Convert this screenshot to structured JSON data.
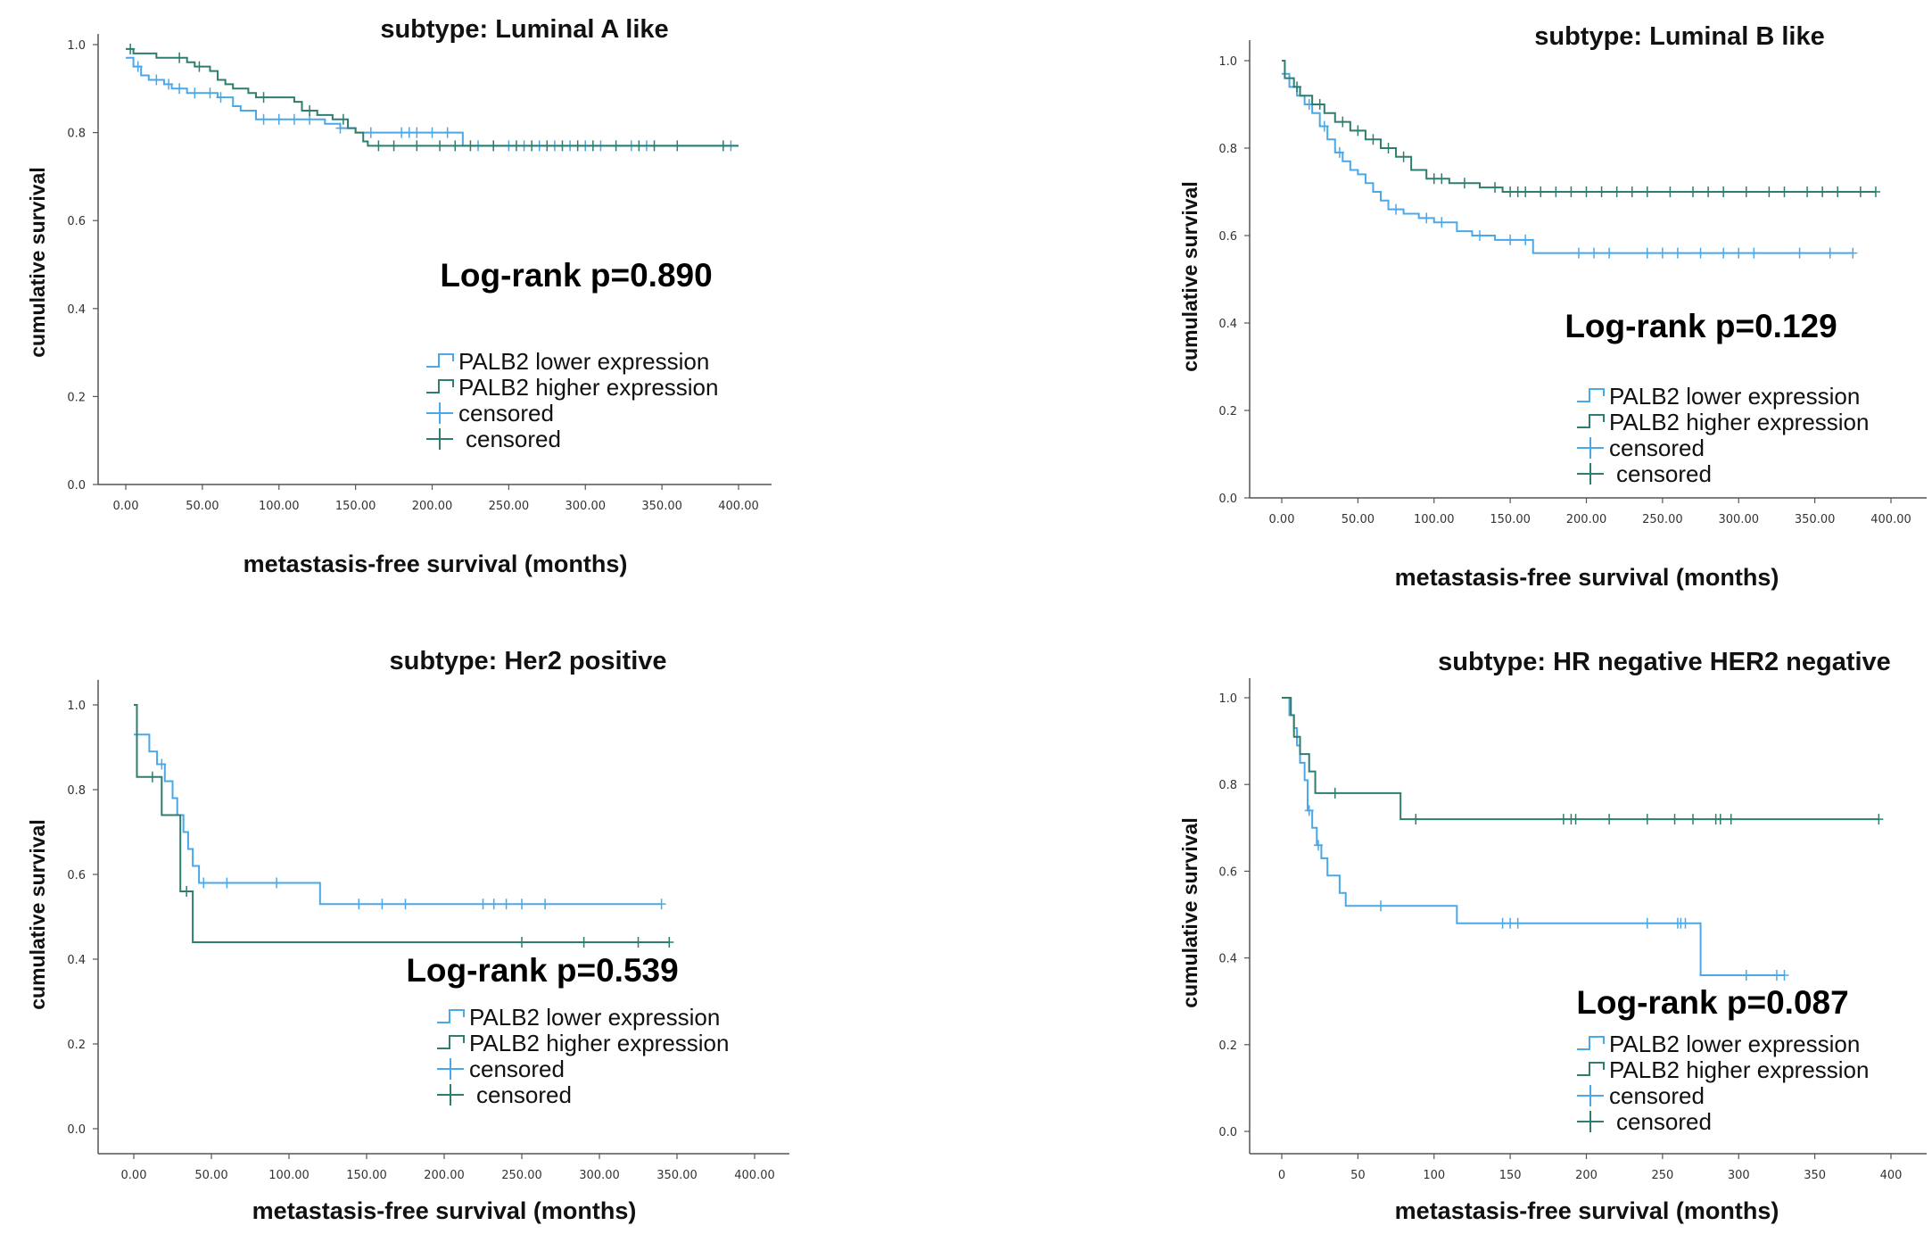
{
  "colors": {
    "lower": "#4aa8e8",
    "higher": "#2e7d6f",
    "axis": "#555555"
  },
  "chart_data": [
    {
      "type": "line",
      "title": "subtype: Luminal A like",
      "xlabel": "metastasis-free survival (months)",
      "ylabel": "cumulative survival",
      "xlim": [
        0,
        400
      ],
      "ylim": [
        0,
        1
      ],
      "x_ticks": [
        0,
        50,
        100,
        150,
        200,
        250,
        300,
        350,
        400
      ],
      "x_tick_labels": [
        "0.00",
        "50.00",
        "100.00",
        "150.00",
        "200.00",
        "250.00",
        "300.00",
        "350.00",
        "400.00"
      ],
      "y_ticks": [
        0,
        0.2,
        0.4,
        0.6,
        0.8,
        1.0
      ],
      "y_tick_labels": [
        "0.0",
        "0.2",
        "0.4",
        "0.6",
        "0.8",
        "1.0"
      ],
      "annotation": "Log-rank p=0.890",
      "legend": [
        "PALB2 lower expression",
        "PALB2 higher expression",
        "censored",
        "censored"
      ],
      "series": [
        {
          "name": "PALB2 lower expression",
          "color_key": "lower",
          "steps": [
            [
              0,
              0.97
            ],
            [
              5,
              0.95
            ],
            [
              10,
              0.93
            ],
            [
              15,
              0.92
            ],
            [
              25,
              0.91
            ],
            [
              30,
              0.9
            ],
            [
              40,
              0.89
            ],
            [
              60,
              0.88
            ],
            [
              70,
              0.86
            ],
            [
              75,
              0.85
            ],
            [
              85,
              0.83
            ],
            [
              130,
              0.82
            ],
            [
              140,
              0.81
            ],
            [
              150,
              0.8
            ],
            [
              220,
              0.77
            ],
            [
              400,
              0.77
            ]
          ],
          "censored": [
            8,
            20,
            28,
            35,
            45,
            55,
            62,
            90,
            100,
            110,
            120,
            140,
            160,
            180,
            185,
            190,
            200,
            210,
            230,
            240,
            250,
            260,
            270,
            280,
            290,
            300,
            310,
            330,
            340,
            395
          ]
        },
        {
          "name": "PALB2 higher expression",
          "color_key": "higher",
          "steps": [
            [
              0,
              0.99
            ],
            [
              5,
              0.98
            ],
            [
              20,
              0.97
            ],
            [
              40,
              0.96
            ],
            [
              45,
              0.95
            ],
            [
              55,
              0.94
            ],
            [
              60,
              0.92
            ],
            [
              65,
              0.91
            ],
            [
              70,
              0.9
            ],
            [
              80,
              0.89
            ],
            [
              85,
              0.88
            ],
            [
              110,
              0.87
            ],
            [
              115,
              0.85
            ],
            [
              125,
              0.84
            ],
            [
              135,
              0.83
            ],
            [
              145,
              0.81
            ],
            [
              150,
              0.8
            ],
            [
              155,
              0.78
            ],
            [
              158,
              0.77
            ],
            [
              400,
              0.77
            ]
          ],
          "censored": [
            3,
            35,
            48,
            90,
            120,
            142,
            165,
            175,
            190,
            205,
            215,
            225,
            240,
            255,
            265,
            275,
            285,
            295,
            305,
            320,
            335,
            345,
            360,
            390
          ]
        }
      ]
    },
    {
      "type": "line",
      "title": "subtype: Luminal B like",
      "xlabel": "metastasis-free survival (months)",
      "ylabel": "cumulative survival",
      "xlim": [
        0,
        400
      ],
      "ylim": [
        0,
        1
      ],
      "x_ticks": [
        0,
        50,
        100,
        150,
        200,
        250,
        300,
        350,
        400
      ],
      "x_tick_labels": [
        "0.00",
        "50.00",
        "100.00",
        "150.00",
        "200.00",
        "250.00",
        "300.00",
        "350.00",
        "400.00"
      ],
      "y_ticks": [
        0,
        0.2,
        0.4,
        0.6,
        0.8,
        1.0
      ],
      "y_tick_labels": [
        "0.0",
        "0.2",
        "0.4",
        "0.6",
        "0.8",
        "1.0"
      ],
      "annotation": "Log-rank p=0.129",
      "legend": [
        "PALB2 lower expression",
        "PALB2 higher expression",
        "censored",
        "censored"
      ],
      "series": [
        {
          "name": "PALB2 lower expression",
          "color_key": "lower",
          "steps": [
            [
              0,
              0.97
            ],
            [
              5,
              0.94
            ],
            [
              10,
              0.92
            ],
            [
              15,
              0.9
            ],
            [
              20,
              0.88
            ],
            [
              25,
              0.85
            ],
            [
              30,
              0.82
            ],
            [
              35,
              0.79
            ],
            [
              40,
              0.77
            ],
            [
              45,
              0.75
            ],
            [
              50,
              0.74
            ],
            [
              55,
              0.72
            ],
            [
              60,
              0.7
            ],
            [
              65,
              0.68
            ],
            [
              70,
              0.66
            ],
            [
              80,
              0.65
            ],
            [
              90,
              0.64
            ],
            [
              100,
              0.63
            ],
            [
              115,
              0.61
            ],
            [
              125,
              0.6
            ],
            [
              140,
              0.59
            ],
            [
              165,
              0.56
            ],
            [
              375,
              0.56
            ]
          ],
          "censored": [
            18,
            28,
            38,
            75,
            95,
            105,
            130,
            150,
            160,
            195,
            205,
            215,
            240,
            250,
            260,
            275,
            290,
            300,
            310,
            340,
            360,
            375
          ]
        },
        {
          "name": "PALB2 higher expression",
          "color_key": "higher",
          "steps": [
            [
              0,
              1.0
            ],
            [
              2,
              0.96
            ],
            [
              8,
              0.94
            ],
            [
              12,
              0.92
            ],
            [
              20,
              0.9
            ],
            [
              28,
              0.88
            ],
            [
              35,
              0.86
            ],
            [
              45,
              0.84
            ],
            [
              55,
              0.82
            ],
            [
              65,
              0.8
            ],
            [
              75,
              0.78
            ],
            [
              85,
              0.75
            ],
            [
              95,
              0.73
            ],
            [
              110,
              0.72
            ],
            [
              130,
              0.71
            ],
            [
              145,
              0.7
            ],
            [
              390,
              0.7
            ]
          ],
          "censored": [
            10,
            25,
            40,
            50,
            60,
            70,
            80,
            100,
            105,
            120,
            140,
            150,
            155,
            160,
            170,
            180,
            190,
            200,
            210,
            220,
            230,
            240,
            255,
            270,
            280,
            290,
            305,
            320,
            330,
            345,
            355,
            365,
            380,
            390
          ]
        }
      ]
    },
    {
      "type": "line",
      "title": "subtype: Her2 positive",
      "xlabel": "metastasis-free survival (months)",
      "ylabel": "cumulative survival",
      "xlim": [
        0,
        400
      ],
      "ylim": [
        0,
        1
      ],
      "x_ticks": [
        0,
        50,
        100,
        150,
        200,
        250,
        300,
        350,
        400
      ],
      "x_tick_labels": [
        "0.00",
        "50.00",
        "100.00",
        "150.00",
        "200.00",
        "250.00",
        "300.00",
        "350.00",
        "400.00"
      ],
      "y_ticks": [
        0,
        0.2,
        0.4,
        0.6,
        0.8,
        1.0
      ],
      "y_tick_labels": [
        "0.0",
        "0.2",
        "0.4",
        "0.6",
        "0.8",
        "1.0"
      ],
      "annotation": "Log-rank p=0.539",
      "legend": [
        "PALB2 lower expression",
        "PALB2 higher expression",
        "censored",
        "censored"
      ],
      "series": [
        {
          "name": "PALB2 lower expression",
          "color_key": "lower",
          "steps": [
            [
              0,
              0.93
            ],
            [
              10,
              0.89
            ],
            [
              15,
              0.86
            ],
            [
              20,
              0.82
            ],
            [
              25,
              0.78
            ],
            [
              28,
              0.74
            ],
            [
              32,
              0.7
            ],
            [
              35,
              0.66
            ],
            [
              38,
              0.62
            ],
            [
              42,
              0.58
            ],
            [
              120,
              0.53
            ],
            [
              340,
              0.53
            ]
          ],
          "censored": [
            18,
            45,
            60,
            92,
            145,
            160,
            175,
            225,
            232,
            240,
            250,
            265,
            340
          ]
        },
        {
          "name": "PALB2 higher expression",
          "color_key": "higher",
          "steps": [
            [
              0,
              1.0
            ],
            [
              2,
              0.83
            ],
            [
              18,
              0.74
            ],
            [
              30,
              0.56
            ],
            [
              38,
              0.44
            ],
            [
              345,
              0.44
            ]
          ],
          "censored": [
            12,
            34,
            250,
            290,
            325,
            345
          ]
        }
      ]
    },
    {
      "type": "line",
      "title": "subtype: HR negative HER2 negative",
      "xlabel": "metastasis-free survival (months)",
      "ylabel": "cumulative survival",
      "xlim": [
        0,
        400
      ],
      "ylim": [
        0,
        1
      ],
      "x_ticks": [
        0,
        50,
        100,
        150,
        200,
        250,
        300,
        350,
        400
      ],
      "x_tick_labels": [
        "0",
        "50",
        "100",
        "150",
        "200",
        "250",
        "300",
        "350",
        "400"
      ],
      "y_ticks": [
        0,
        0.2,
        0.4,
        0.6,
        0.8,
        1.0
      ],
      "y_tick_labels": [
        "0.0",
        "0.2",
        "0.4",
        "0.6",
        "0.8",
        "1.0"
      ],
      "annotation": "Log-rank p=0.087",
      "legend": [
        "PALB2 lower expression",
        "PALB2 higher expression",
        "censored",
        "censored"
      ],
      "series": [
        {
          "name": "PALB2 lower expression",
          "color_key": "lower",
          "steps": [
            [
              0,
              1.0
            ],
            [
              5,
              0.96
            ],
            [
              8,
              0.93
            ],
            [
              10,
              0.89
            ],
            [
              12,
              0.85
            ],
            [
              15,
              0.81
            ],
            [
              17,
              0.74
            ],
            [
              20,
              0.7
            ],
            [
              23,
              0.66
            ],
            [
              26,
              0.63
            ],
            [
              30,
              0.59
            ],
            [
              38,
              0.55
            ],
            [
              42,
              0.52
            ],
            [
              115,
              0.48
            ],
            [
              275,
              0.36
            ],
            [
              330,
              0.36
            ]
          ],
          "censored": [
            18,
            24,
            65,
            145,
            150,
            155,
            240,
            260,
            262,
            265,
            305,
            325,
            330
          ]
        },
        {
          "name": "PALB2 higher expression",
          "color_key": "higher",
          "steps": [
            [
              0,
              1.0
            ],
            [
              6,
              0.96
            ],
            [
              8,
              0.91
            ],
            [
              12,
              0.87
            ],
            [
              18,
              0.83
            ],
            [
              22,
              0.78
            ],
            [
              78,
              0.72
            ],
            [
              392,
              0.72
            ]
          ],
          "censored": [
            35,
            88,
            185,
            190,
            193,
            215,
            240,
            258,
            270,
            285,
            288,
            295,
            392
          ]
        }
      ]
    }
  ]
}
